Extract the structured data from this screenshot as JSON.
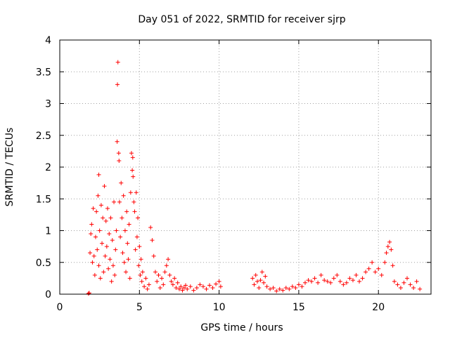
{
  "chart_data": {
    "type": "scatter",
    "title": "Day 051 of 2022, SRMTID for receiver sjrp",
    "xlabel": "GPS time / hours",
    "ylabel": "SRMTID / TECUs",
    "xlim": [
      0,
      23.3
    ],
    "ylim": [
      0,
      4
    ],
    "xticks": [
      0,
      5,
      10,
      15,
      20
    ],
    "xtick_labels": [
      "0",
      "5",
      "10",
      "15",
      "20"
    ],
    "yticks": [
      0,
      0.5,
      1,
      1.5,
      2,
      2.5,
      3,
      3.5,
      4
    ],
    "ytick_labels": [
      "0",
      "0.5",
      "1",
      "1.5",
      "2",
      "2.5",
      "3",
      "3.5",
      "4"
    ],
    "grid": true,
    "marker": "+",
    "color": "#ff0000",
    "series": [
      {
        "name": "SRMTID",
        "points": [
          [
            1.8,
            0.01
          ],
          [
            1.85,
            0.02
          ],
          [
            1.9,
            0.65
          ],
          [
            1.95,
            0.95
          ],
          [
            2.0,
            1.1
          ],
          [
            2.05,
            0.5
          ],
          [
            2.1,
            1.35
          ],
          [
            2.15,
            0.6
          ],
          [
            2.2,
            0.3
          ],
          [
            2.25,
            0.9
          ],
          [
            2.3,
            1.3
          ],
          [
            2.35,
            0.7
          ],
          [
            2.4,
            1.55
          ],
          [
            2.45,
            0.45
          ],
          [
            2.45,
            1.88
          ],
          [
            2.5,
            1.0
          ],
          [
            2.55,
            0.25
          ],
          [
            2.6,
            1.4
          ],
          [
            2.65,
            0.8
          ],
          [
            2.7,
            1.2
          ],
          [
            2.75,
            0.35
          ],
          [
            2.8,
            1.7
          ],
          [
            2.85,
            0.6
          ],
          [
            2.9,
            1.15
          ],
          [
            2.95,
            0.75
          ],
          [
            3.0,
            1.35
          ],
          [
            3.05,
            0.4
          ],
          [
            3.1,
            0.95
          ],
          [
            3.15,
            0.55
          ],
          [
            3.2,
            1.2
          ],
          [
            3.25,
            0.2
          ],
          [
            3.3,
            0.85
          ],
          [
            3.35,
            0.45
          ],
          [
            3.4,
            1.45
          ],
          [
            3.45,
            0.3
          ],
          [
            3.5,
            0.7
          ],
          [
            3.55,
            1.0
          ],
          [
            3.6,
            2.4
          ],
          [
            3.62,
            3.3
          ],
          [
            3.65,
            3.65
          ],
          [
            3.7,
            2.22
          ],
          [
            3.72,
            2.1
          ],
          [
            3.75,
            1.45
          ],
          [
            3.8,
            0.9
          ],
          [
            3.85,
            1.75
          ],
          [
            3.9,
            1.2
          ],
          [
            3.95,
            0.65
          ],
          [
            4.0,
            1.55
          ],
          [
            4.05,
            0.5
          ],
          [
            4.1,
            1.0
          ],
          [
            4.15,
            0.35
          ],
          [
            4.2,
            1.3
          ],
          [
            4.25,
            0.8
          ],
          [
            4.3,
            0.55
          ],
          [
            4.35,
            1.1
          ],
          [
            4.4,
            0.25
          ],
          [
            4.45,
            1.6
          ],
          [
            4.5,
            2.22
          ],
          [
            4.55,
            1.95
          ],
          [
            4.58,
            2.15
          ],
          [
            4.6,
            1.85
          ],
          [
            4.65,
            1.45
          ],
          [
            4.7,
            1.3
          ],
          [
            4.75,
            0.7
          ],
          [
            4.8,
            1.6
          ],
          [
            4.85,
            0.9
          ],
          [
            4.9,
            1.2
          ],
          [
            4.95,
            0.45
          ],
          [
            5.0,
            0.75
          ],
          [
            5.05,
            0.3
          ],
          [
            5.1,
            0.55
          ],
          [
            5.15,
            0.2
          ],
          [
            5.2,
            0.35
          ],
          [
            5.3,
            0.12
          ],
          [
            5.4,
            0.25
          ],
          [
            5.5,
            0.08
          ],
          [
            5.6,
            0.15
          ],
          [
            5.7,
            1.05
          ],
          [
            5.8,
            0.85
          ],
          [
            5.9,
            0.6
          ],
          [
            6.0,
            0.35
          ],
          [
            6.1,
            0.2
          ],
          [
            6.2,
            0.3
          ],
          [
            6.3,
            0.1
          ],
          [
            6.4,
            0.25
          ],
          [
            6.5,
            0.15
          ],
          [
            6.6,
            0.35
          ],
          [
            6.7,
            0.45
          ],
          [
            6.8,
            0.55
          ],
          [
            6.9,
            0.3
          ],
          [
            7.0,
            0.2
          ],
          [
            7.1,
            0.15
          ],
          [
            7.2,
            0.25
          ],
          [
            7.3,
            0.1
          ],
          [
            7.4,
            0.18
          ],
          [
            7.5,
            0.08
          ],
          [
            7.6,
            0.12
          ],
          [
            7.7,
            0.06
          ],
          [
            7.8,
            0.1
          ],
          [
            7.9,
            0.14
          ],
          [
            8.0,
            0.08
          ],
          [
            8.2,
            0.12
          ],
          [
            8.4,
            0.06
          ],
          [
            8.6,
            0.1
          ],
          [
            8.8,
            0.15
          ],
          [
            9.0,
            0.12
          ],
          [
            9.2,
            0.08
          ],
          [
            9.4,
            0.14
          ],
          [
            9.6,
            0.1
          ],
          [
            9.8,
            0.16
          ],
          [
            10.0,
            0.2
          ],
          [
            10.1,
            0.12
          ],
          [
            12.1,
            0.25
          ],
          [
            12.2,
            0.15
          ],
          [
            12.3,
            0.3
          ],
          [
            12.4,
            0.2
          ],
          [
            12.5,
            0.1
          ],
          [
            12.6,
            0.22
          ],
          [
            12.7,
            0.35
          ],
          [
            12.8,
            0.18
          ],
          [
            12.9,
            0.28
          ],
          [
            13.0,
            0.12
          ],
          [
            13.2,
            0.08
          ],
          [
            13.4,
            0.1
          ],
          [
            13.6,
            0.05
          ],
          [
            13.8,
            0.08
          ],
          [
            14.0,
            0.06
          ],
          [
            14.2,
            0.1
          ],
          [
            14.4,
            0.08
          ],
          [
            14.6,
            0.12
          ],
          [
            14.8,
            0.1
          ],
          [
            15.0,
            0.15
          ],
          [
            15.2,
            0.12
          ],
          [
            15.4,
            0.18
          ],
          [
            15.6,
            0.22
          ],
          [
            15.8,
            0.2
          ],
          [
            16.0,
            0.25
          ],
          [
            16.2,
            0.18
          ],
          [
            16.4,
            0.3
          ],
          [
            16.6,
            0.22
          ],
          [
            16.8,
            0.2
          ],
          [
            17.0,
            0.18
          ],
          [
            17.2,
            0.25
          ],
          [
            17.4,
            0.3
          ],
          [
            17.6,
            0.2
          ],
          [
            17.8,
            0.15
          ],
          [
            18.0,
            0.18
          ],
          [
            18.2,
            0.25
          ],
          [
            18.4,
            0.22
          ],
          [
            18.6,
            0.3
          ],
          [
            18.8,
            0.2
          ],
          [
            19.0,
            0.25
          ],
          [
            19.2,
            0.35
          ],
          [
            19.4,
            0.4
          ],
          [
            19.6,
            0.5
          ],
          [
            19.8,
            0.35
          ],
          [
            20.0,
            0.4
          ],
          [
            20.2,
            0.3
          ],
          [
            20.4,
            0.5
          ],
          [
            20.5,
            0.65
          ],
          [
            20.6,
            0.75
          ],
          [
            20.7,
            0.82
          ],
          [
            20.8,
            0.7
          ],
          [
            20.9,
            0.45
          ],
          [
            21.0,
            0.2
          ],
          [
            21.2,
            0.15
          ],
          [
            21.4,
            0.1
          ],
          [
            21.6,
            0.18
          ],
          [
            21.8,
            0.25
          ],
          [
            22.0,
            0.15
          ],
          [
            22.2,
            0.1
          ],
          [
            22.4,
            0.2
          ],
          [
            22.6,
            0.08
          ]
        ]
      }
    ]
  }
}
